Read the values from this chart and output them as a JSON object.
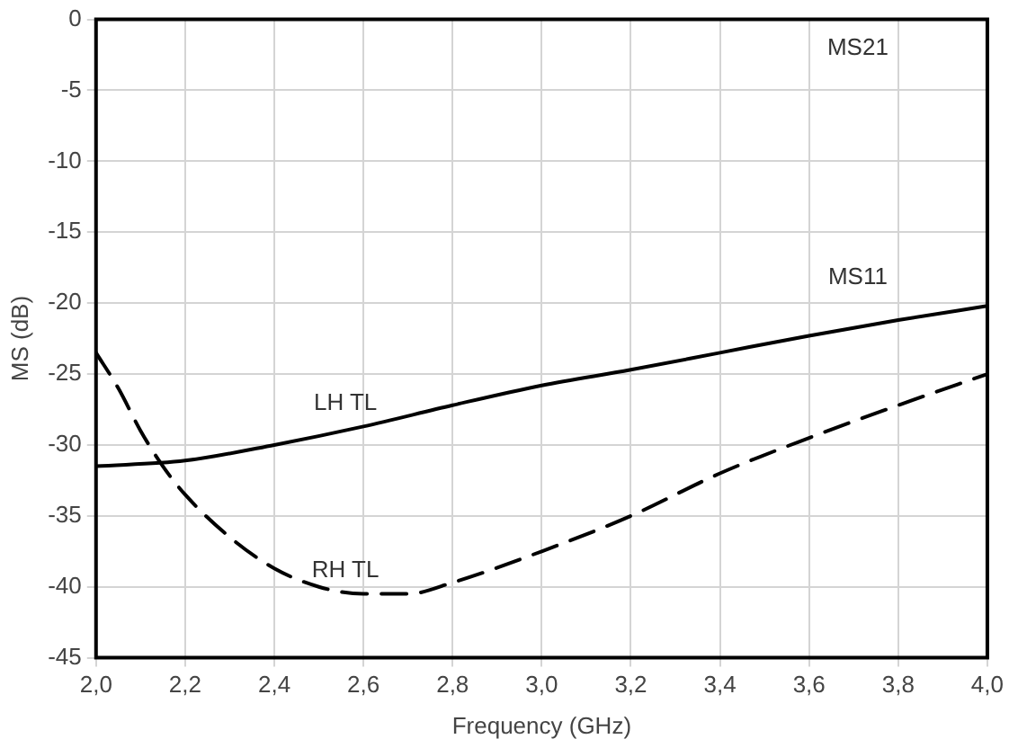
{
  "chart_data": {
    "type": "line",
    "xlabel": "Frequency (GHz)",
    "ylabel": "MS (dB)",
    "xlim": [
      2.0,
      4.0
    ],
    "ylim": [
      -45,
      0
    ],
    "xticks": [
      {
        "value": 2.0,
        "label": "2,0"
      },
      {
        "value": 2.2,
        "label": "2,2"
      },
      {
        "value": 2.4,
        "label": "2,4"
      },
      {
        "value": 2.6,
        "label": "2,6"
      },
      {
        "value": 2.8,
        "label": "2,8"
      },
      {
        "value": 3.0,
        "label": "3,0"
      },
      {
        "value": 3.2,
        "label": "3,2"
      },
      {
        "value": 3.4,
        "label": "3,4"
      },
      {
        "value": 3.6,
        "label": "3,6"
      },
      {
        "value": 3.8,
        "label": "3,8"
      },
      {
        "value": 4.0,
        "label": "4,0"
      }
    ],
    "yticks": [
      0,
      -5,
      -10,
      -15,
      -20,
      -25,
      -30,
      -35,
      -40,
      -45
    ],
    "grid": true,
    "legend": false,
    "marker": "none",
    "series": [
      {
        "name": "LH TL",
        "color": "#000000",
        "line_style": "solid",
        "x": [
          2.0,
          2.2,
          2.4,
          2.6,
          2.8,
          3.0,
          3.2,
          3.4,
          3.6,
          3.8,
          4.0
        ],
        "values": [
          -31.5,
          -31.1,
          -30,
          -28.7,
          -27.2,
          -25.8,
          -24.7,
          -23.5,
          -22.3,
          -21.2,
          -20.2
        ]
      },
      {
        "name": "RH TL",
        "color": "#000000",
        "line_style": "dashed",
        "x": [
          2.0,
          2.05,
          2.1,
          2.15,
          2.2,
          2.3,
          2.4,
          2.5,
          2.6,
          2.7,
          2.8,
          3.0,
          3.2,
          3.4,
          3.6,
          3.8,
          4.0
        ],
        "values": [
          -23.5,
          -26,
          -29,
          -31.5,
          -33.5,
          -36.5,
          -38.7,
          -40,
          -40.5,
          -40.5,
          -39.7,
          -37.5,
          -35,
          -32,
          -29.5,
          -27.2,
          -25
        ]
      }
    ],
    "annotations": [
      "MS21",
      "MS11"
    ]
  }
}
